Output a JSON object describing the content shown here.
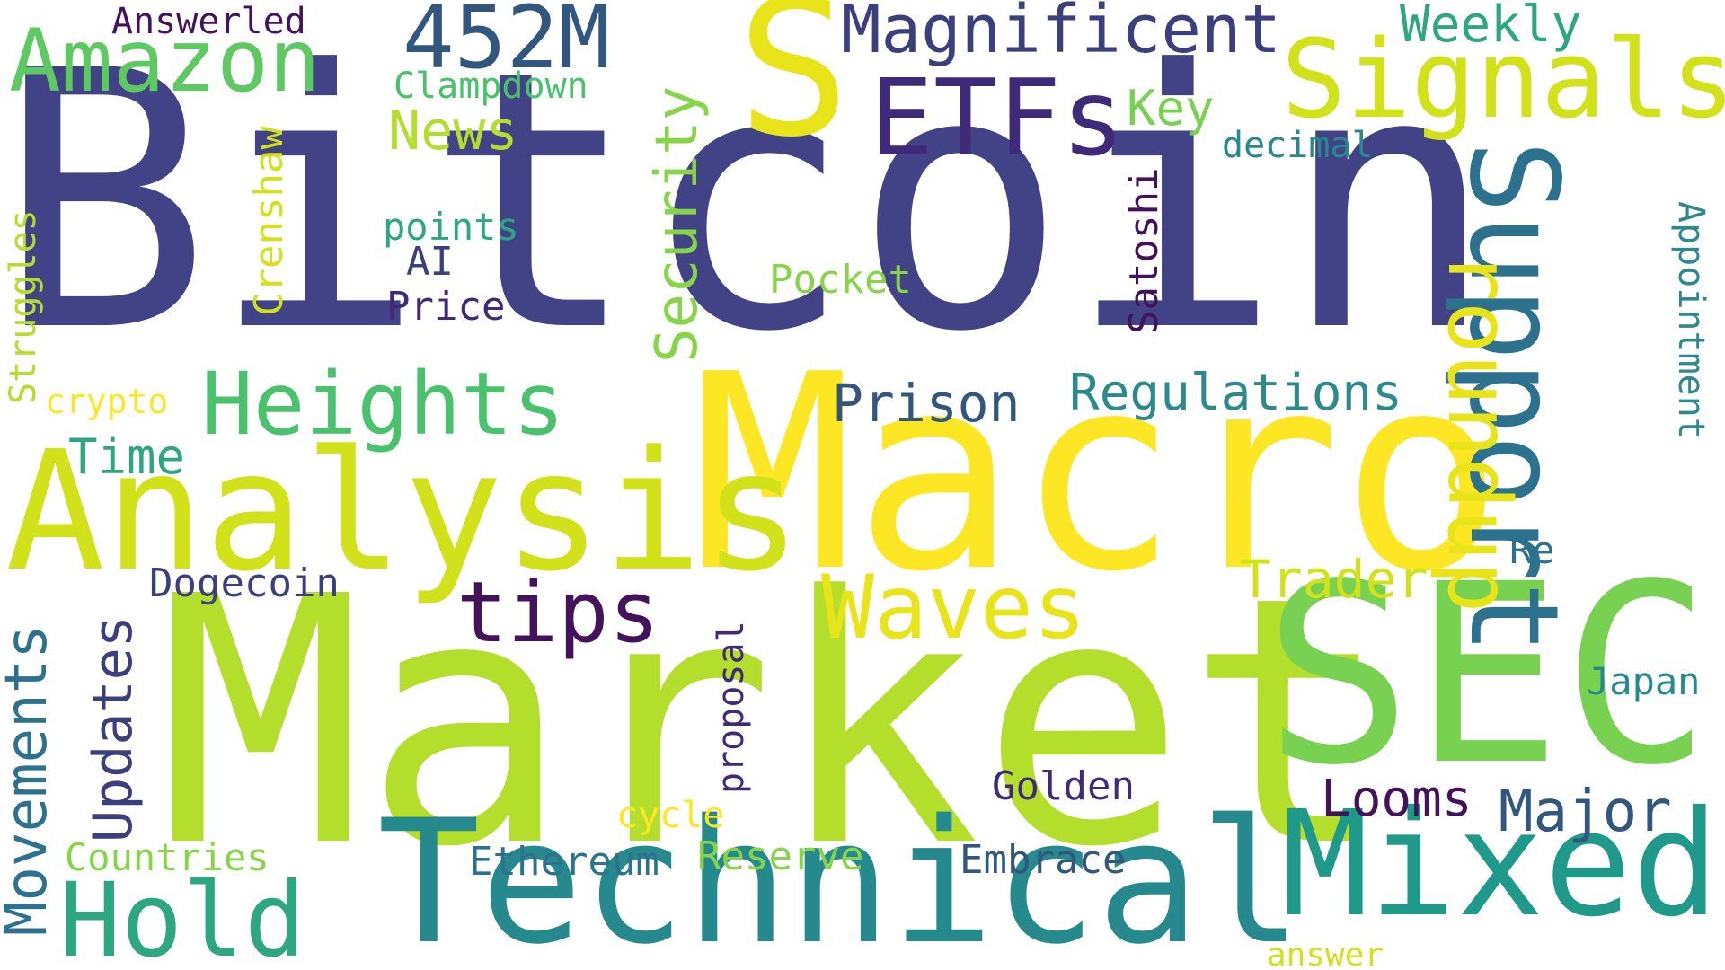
{
  "palette": {
    "navy": "#424387",
    "purple": "#44125a",
    "indigo": "#3b3f7e",
    "slate": "#32577e",
    "blue": "#2f6b8f",
    "teal": "#26898d",
    "teal2": "#1f9a8a",
    "sea": "#2ca77f",
    "green": "#42bb70",
    "lgreen": "#79d152",
    "lime": "#b4de2c",
    "yellow": "#fde725",
    "ylime": "#d1e21b"
  },
  "words": [
    {
      "id": "bitcoin",
      "text": "Bitcoin",
      "color": "#424387"
    },
    {
      "id": "market",
      "text": "Market",
      "color": "#b4de2c"
    },
    {
      "id": "macro",
      "text": "Macro",
      "color": "#fde725"
    },
    {
      "id": "s",
      "text": "S",
      "color": "#e8e419"
    },
    {
      "id": "sec",
      "text": "SEC",
      "color": "#79d152"
    },
    {
      "id": "technical",
      "text": "Technical",
      "color": "#26898d"
    },
    {
      "id": "mixed",
      "text": "Mixed",
      "color": "#1f9a8a"
    },
    {
      "id": "analysis",
      "text": "Analysis",
      "color": "#d1e21b"
    },
    {
      "id": "signals",
      "text": "Signals",
      "color": "#d1e21b"
    },
    {
      "id": "etfs",
      "text": "ETFs",
      "color": "#3f2a79"
    },
    {
      "id": "amazon",
      "text": "Amazon",
      "color": "#5ec962"
    },
    {
      "id": "452m",
      "text": "452M",
      "color": "#32577e"
    },
    {
      "id": "magnificent",
      "text": "Magnificent",
      "color": "#3b3f7e"
    },
    {
      "id": "support",
      "text": "Support",
      "color": "#2c728e"
    },
    {
      "id": "heights",
      "text": "Heights",
      "color": "#4ac16d"
    },
    {
      "id": "waves",
      "text": "Waves",
      "color": "#e8e419"
    },
    {
      "id": "hold",
      "text": "Hold",
      "color": "#2ca77f"
    },
    {
      "id": "roundup",
      "text": "roundup",
      "color": "#e8e419"
    },
    {
      "id": "tips",
      "text": "tips",
      "color": "#44125a"
    },
    {
      "id": "security",
      "text": "Security",
      "color": "#86d549"
    },
    {
      "id": "regulations",
      "text": "Regulations",
      "color": "#2c8a8d"
    },
    {
      "id": "prison",
      "text": "Prison",
      "color": "#32577e"
    },
    {
      "id": "weekly",
      "text": "Weekly",
      "color": "#2ca77f"
    },
    {
      "id": "trader",
      "text": "Trader",
      "color": "#d1e21b"
    },
    {
      "id": "movements",
      "text": "Movements",
      "color": "#2c728e"
    },
    {
      "id": "updates",
      "text": "Updates",
      "color": "#3b3f7e"
    },
    {
      "id": "major",
      "text": "Major",
      "color": "#32577e"
    },
    {
      "id": "looms",
      "text": "Looms",
      "color": "#44125a"
    },
    {
      "id": "news",
      "text": "News",
      "color": "#b4de2c"
    },
    {
      "id": "key",
      "text": "Key",
      "color": "#79d152"
    },
    {
      "id": "time",
      "text": "Time",
      "color": "#2ca77f"
    },
    {
      "id": "ethereum",
      "text": "Ethereum",
      "color": "#2c728e"
    },
    {
      "id": "embrace",
      "text": "Embrace",
      "color": "#32577e"
    },
    {
      "id": "dogecoin",
      "text": "Dogecoin",
      "color": "#3b3f7e"
    },
    {
      "id": "countries",
      "text": "Countries",
      "color": "#86d549"
    },
    {
      "id": "reserve",
      "text": "Reserve",
      "color": "#86d549"
    },
    {
      "id": "golden",
      "text": "Golden",
      "color": "#3f2a79"
    },
    {
      "id": "japan",
      "text": "Japan",
      "color": "#26898d"
    },
    {
      "id": "pocket",
      "text": "Pocket",
      "color": "#86d549"
    },
    {
      "id": "crenshaw",
      "text": "Crenshaw",
      "color": "#d1e21b"
    },
    {
      "id": "satoshi",
      "text": "Satoshi",
      "color": "#44125a"
    },
    {
      "id": "appointment",
      "text": "Appointment",
      "color": "#2c8a8d"
    },
    {
      "id": "struggles",
      "text": "Struggles",
      "color": "#b4de2c"
    },
    {
      "id": "proposal",
      "text": "proposal",
      "color": "#3f2a79"
    },
    {
      "id": "price",
      "text": "Price",
      "color": "#3f2a79"
    },
    {
      "id": "ai",
      "text": "AI",
      "color": "#3b3f7e"
    },
    {
      "id": "points",
      "text": "points",
      "color": "#2ca77f"
    },
    {
      "id": "clampdown",
      "text": "Clampdown",
      "color": "#4ac16d"
    },
    {
      "id": "answerled",
      "text": "Answerled",
      "color": "#44125a"
    },
    {
      "id": "decimal",
      "text": "decimal",
      "color": "#26898d"
    },
    {
      "id": "crypto",
      "text": "crypto",
      "color": "#fde725"
    },
    {
      "id": "cycle",
      "text": "cycle",
      "color": "#fde725"
    },
    {
      "id": "re",
      "text": "Re",
      "color": "#2c728e"
    },
    {
      "id": "answer",
      "text": "answer",
      "color": "#d1e21b"
    }
  ]
}
